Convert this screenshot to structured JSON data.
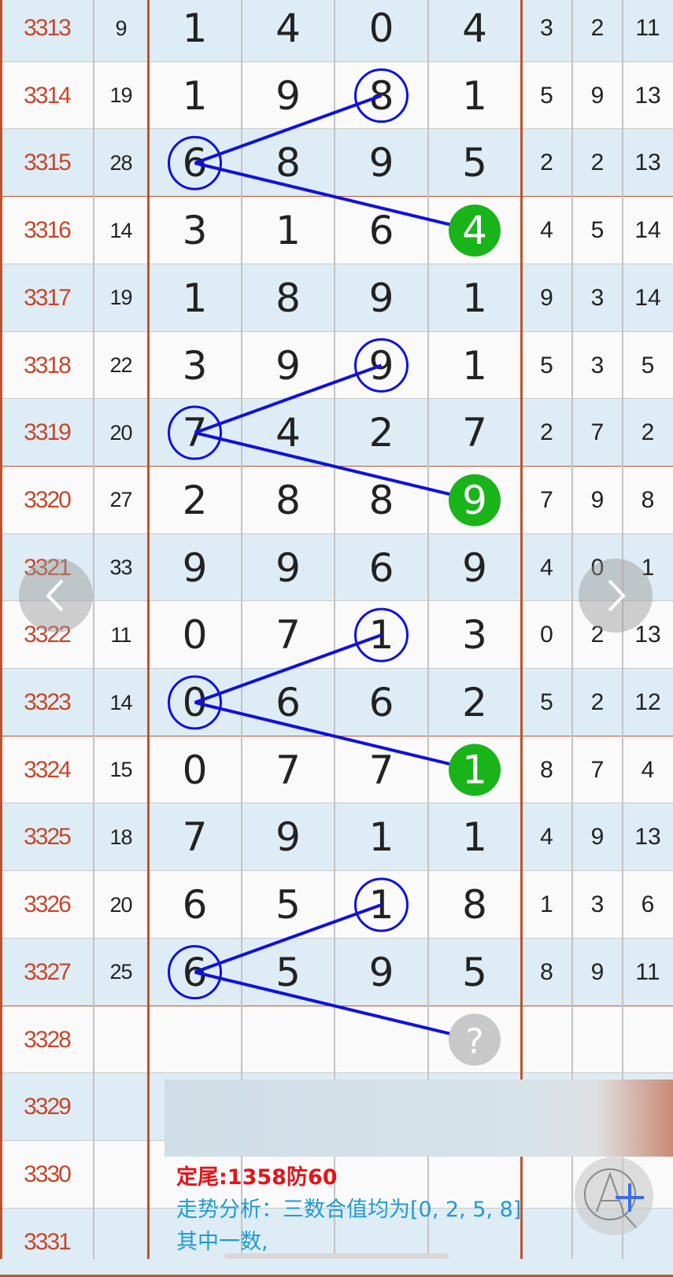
{
  "colors": {
    "issue": "#c8462a",
    "thick_line": "#c0532c",
    "ring": "#1010e0",
    "hit": "#19b419",
    "pending": "#c8c8c8",
    "note_red": "#e3151b",
    "note_blue": "#1e9ad6"
  },
  "rows": [
    {
      "issue": "3313",
      "sum": "9",
      "digits": [
        "1",
        "4",
        "0",
        "4"
      ],
      "extras": [
        "3",
        "2",
        "11"
      ]
    },
    {
      "issue": "3314",
      "sum": "19",
      "digits": [
        "1",
        "9",
        "8",
        "1"
      ],
      "extras": [
        "5",
        "9",
        "13"
      ]
    },
    {
      "issue": "3315",
      "sum": "28",
      "digits": [
        "6",
        "8",
        "9",
        "5"
      ],
      "extras": [
        "2",
        "2",
        "13"
      ]
    },
    {
      "issue": "3316",
      "sum": "14",
      "digits": [
        "3",
        "1",
        "6",
        "4"
      ],
      "extras": [
        "4",
        "5",
        "14"
      ]
    },
    {
      "issue": "3317",
      "sum": "19",
      "digits": [
        "1",
        "8",
        "9",
        "1"
      ],
      "extras": [
        "9",
        "3",
        "14"
      ]
    },
    {
      "issue": "3318",
      "sum": "22",
      "digits": [
        "3",
        "9",
        "9",
        "1"
      ],
      "extras": [
        "5",
        "3",
        "5"
      ]
    },
    {
      "issue": "3319",
      "sum": "20",
      "digits": [
        "7",
        "4",
        "2",
        "7"
      ],
      "extras": [
        "2",
        "7",
        "2"
      ]
    },
    {
      "issue": "3320",
      "sum": "27",
      "digits": [
        "2",
        "8",
        "8",
        "9"
      ],
      "extras": [
        "7",
        "9",
        "8"
      ]
    },
    {
      "issue": "3321",
      "sum": "33",
      "digits": [
        "9",
        "9",
        "6",
        "9"
      ],
      "extras": [
        "4",
        "0",
        "1"
      ]
    },
    {
      "issue": "3322",
      "sum": "11",
      "digits": [
        "0",
        "7",
        "1",
        "3"
      ],
      "extras": [
        "0",
        "2",
        "13"
      ]
    },
    {
      "issue": "3323",
      "sum": "14",
      "digits": [
        "0",
        "6",
        "6",
        "2"
      ],
      "extras": [
        "5",
        "2",
        "12"
      ]
    },
    {
      "issue": "3324",
      "sum": "15",
      "digits": [
        "0",
        "7",
        "7",
        "1"
      ],
      "extras": [
        "8",
        "7",
        "4"
      ]
    },
    {
      "issue": "3325",
      "sum": "18",
      "digits": [
        "7",
        "9",
        "1",
        "1"
      ],
      "extras": [
        "4",
        "9",
        "13"
      ]
    },
    {
      "issue": "3326",
      "sum": "20",
      "digits": [
        "6",
        "5",
        "1",
        "8"
      ],
      "extras": [
        "1",
        "3",
        "6"
      ]
    },
    {
      "issue": "3327",
      "sum": "25",
      "digits": [
        "6",
        "5",
        "9",
        "5"
      ],
      "extras": [
        "8",
        "9",
        "11"
      ]
    },
    {
      "issue": "3328",
      "sum": "",
      "digits": [
        "",
        "",
        "",
        "?"
      ],
      "extras": [
        "",
        "",
        ""
      ]
    },
    {
      "issue": "3329",
      "sum": "",
      "digits": [
        "",
        "",
        "",
        ""
      ],
      "extras": [
        "",
        "",
        ""
      ]
    },
    {
      "issue": "3330",
      "sum": "",
      "digits": [
        "",
        "",
        "",
        ""
      ],
      "extras": [
        "",
        "",
        ""
      ]
    },
    {
      "issue": "3331",
      "sum": "",
      "digits": [
        "",
        "",
        "",
        ""
      ],
      "extras": [
        "",
        "",
        ""
      ]
    }
  ],
  "notes": {
    "line1": "定尾:1358防60",
    "line2": "走势分析：三数合值均为[0, 2, 5, 8]",
    "line3": "其中一数,"
  },
  "icons": {
    "prev": "chevron-left-icon",
    "next": "chevron-right-icon",
    "font_size": "font-size-plus-icon",
    "pending": "question-mark-icon"
  }
}
